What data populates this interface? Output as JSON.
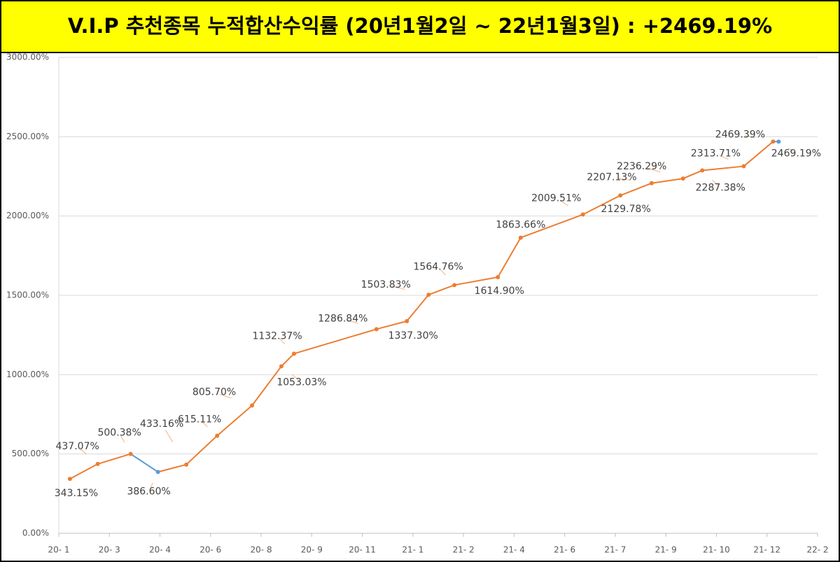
{
  "chart_data": {
    "type": "line",
    "title": "V.I.P 추천종목 누적합산수익률 (20년1월2일 ~ 22년1월3일) : +2469.19%",
    "x": [
      0.22,
      0.77,
      1.42,
      1.96,
      2.52,
      3.13,
      3.82,
      4.4,
      4.65,
      6.28,
      6.88,
      7.31,
      7.82,
      8.68,
      9.13,
      10.36,
      11.1,
      11.72,
      12.34,
      12.72,
      13.54,
      14.12,
      14.23
    ],
    "series": [
      {
        "color": "#ed7d31",
        "values": [
          343.15,
          437.07,
          500.38,
          386.6,
          433.16,
          615.11,
          805.7,
          1053.03,
          1132.37,
          1286.84,
          1337.3,
          1503.83,
          1564.76,
          1614.9,
          1863.66,
          2009.51,
          2129.78,
          2207.13,
          2236.29,
          2287.38,
          2313.71,
          2469.39,
          2469.19
        ],
        "value_labels": [
          "343.15%",
          "437.07%",
          "500.38%",
          "386.60%",
          "433.16%",
          "615.11%",
          "805.70%",
          "1053.03%",
          "1132.37%",
          "1286.84%",
          "1337.30%",
          "1503.83%",
          "1564.76%",
          "1614.90%",
          "1863.66%",
          "2009.51%",
          "2129.78%",
          "2207.13%",
          "2236.29%",
          "2287.38%",
          "2313.71%",
          "2469.39%",
          "2469.19%"
        ],
        "point_colors": [
          "#ed7d31",
          "#ed7d31",
          "#ed7d31",
          "#5b9bd5",
          "#ed7d31",
          "#ed7d31",
          "#ed7d31",
          "#ed7d31",
          "#ed7d31",
          "#ed7d31",
          "#ed7d31",
          "#ed7d31",
          "#ed7d31",
          "#ed7d31",
          "#ed7d31",
          "#ed7d31",
          "#ed7d31",
          "#ed7d31",
          "#ed7d31",
          "#ed7d31",
          "#ed7d31",
          "#ed7d31",
          "#5b9bd5"
        ]
      }
    ],
    "xlim": [
      0,
      15
    ],
    "xticks": [
      {
        "value": 0,
        "label": "20- 1"
      },
      {
        "value": 1,
        "label": "20- 3"
      },
      {
        "value": 2,
        "label": "20- 4"
      },
      {
        "value": 3,
        "label": "20- 6"
      },
      {
        "value": 4,
        "label": "20- 8"
      },
      {
        "value": 5,
        "label": "20- 9"
      },
      {
        "value": 6,
        "label": "20- 11"
      },
      {
        "value": 7,
        "label": "21- 1"
      },
      {
        "value": 8,
        "label": "21- 2"
      },
      {
        "value": 9,
        "label": "21- 4"
      },
      {
        "value": 10,
        "label": "21- 6"
      },
      {
        "value": 11,
        "label": "21- 7"
      },
      {
        "value": 12,
        "label": "21- 9"
      },
      {
        "value": 13,
        "label": "21- 10"
      },
      {
        "value": 14,
        "label": "21- 12"
      },
      {
        "value": 15,
        "label": "22- 2"
      }
    ],
    "ylim": [
      0,
      3000
    ],
    "yticks": [
      {
        "value": 0,
        "label": "0.00%"
      },
      {
        "value": 500,
        "label": "500.00%"
      },
      {
        "value": 1000,
        "label": "1000.00%"
      },
      {
        "value": 1500,
        "label": "1500.00%"
      },
      {
        "value": 2000,
        "label": "2000.00%"
      },
      {
        "value": 2500,
        "label": "2500.00%"
      },
      {
        "value": 3000,
        "label": "3000.00%"
      }
    ],
    "grid": true
  }
}
